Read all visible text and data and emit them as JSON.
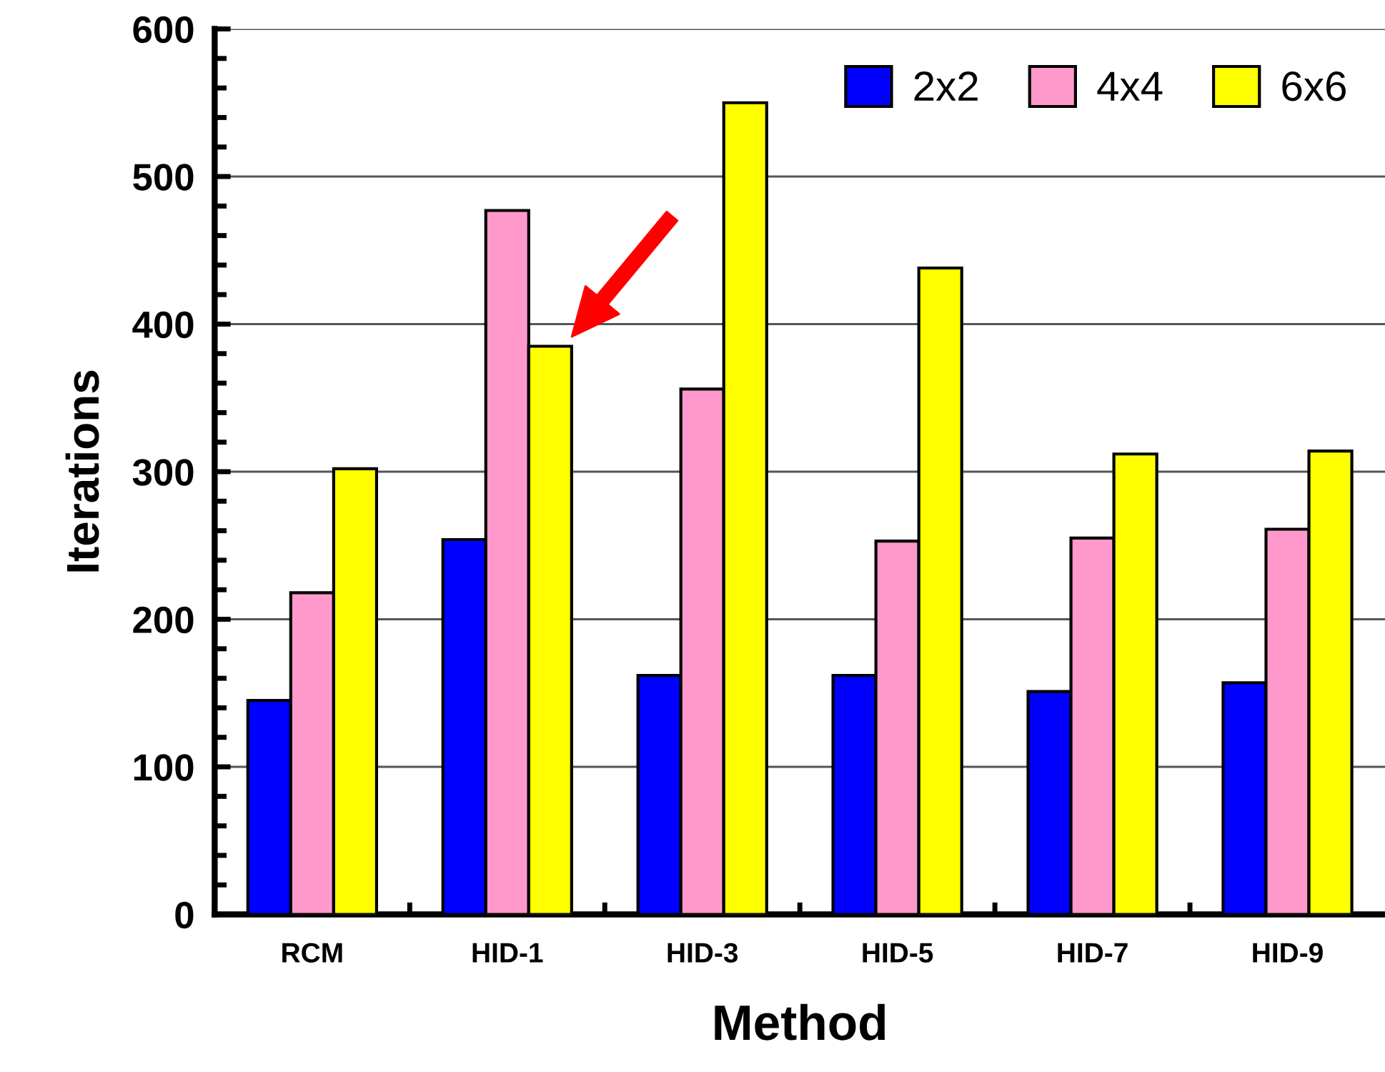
{
  "chart_data": {
    "type": "bar",
    "xlabel": "Method",
    "ylabel": "Iterations",
    "categories": [
      "RCM",
      "HID-1",
      "HID-3",
      "HID-5",
      "HID-7",
      "HID-9"
    ],
    "series": [
      {
        "name": "2x2",
        "color": "#0000ff",
        "values": [
          145,
          254,
          162,
          162,
          151,
          157
        ]
      },
      {
        "name": "4x4",
        "color": "#ff99cc",
        "values": [
          218,
          477,
          356,
          253,
          255,
          261
        ]
      },
      {
        "name": "6x6",
        "color": "#ffff00",
        "values": [
          302,
          385,
          550,
          438,
          312,
          314
        ]
      }
    ],
    "ylim": [
      0,
      600
    ],
    "yticks": [
      0,
      100,
      200,
      300,
      400,
      500,
      600
    ],
    "grid": "y",
    "legend": "top right"
  }
}
